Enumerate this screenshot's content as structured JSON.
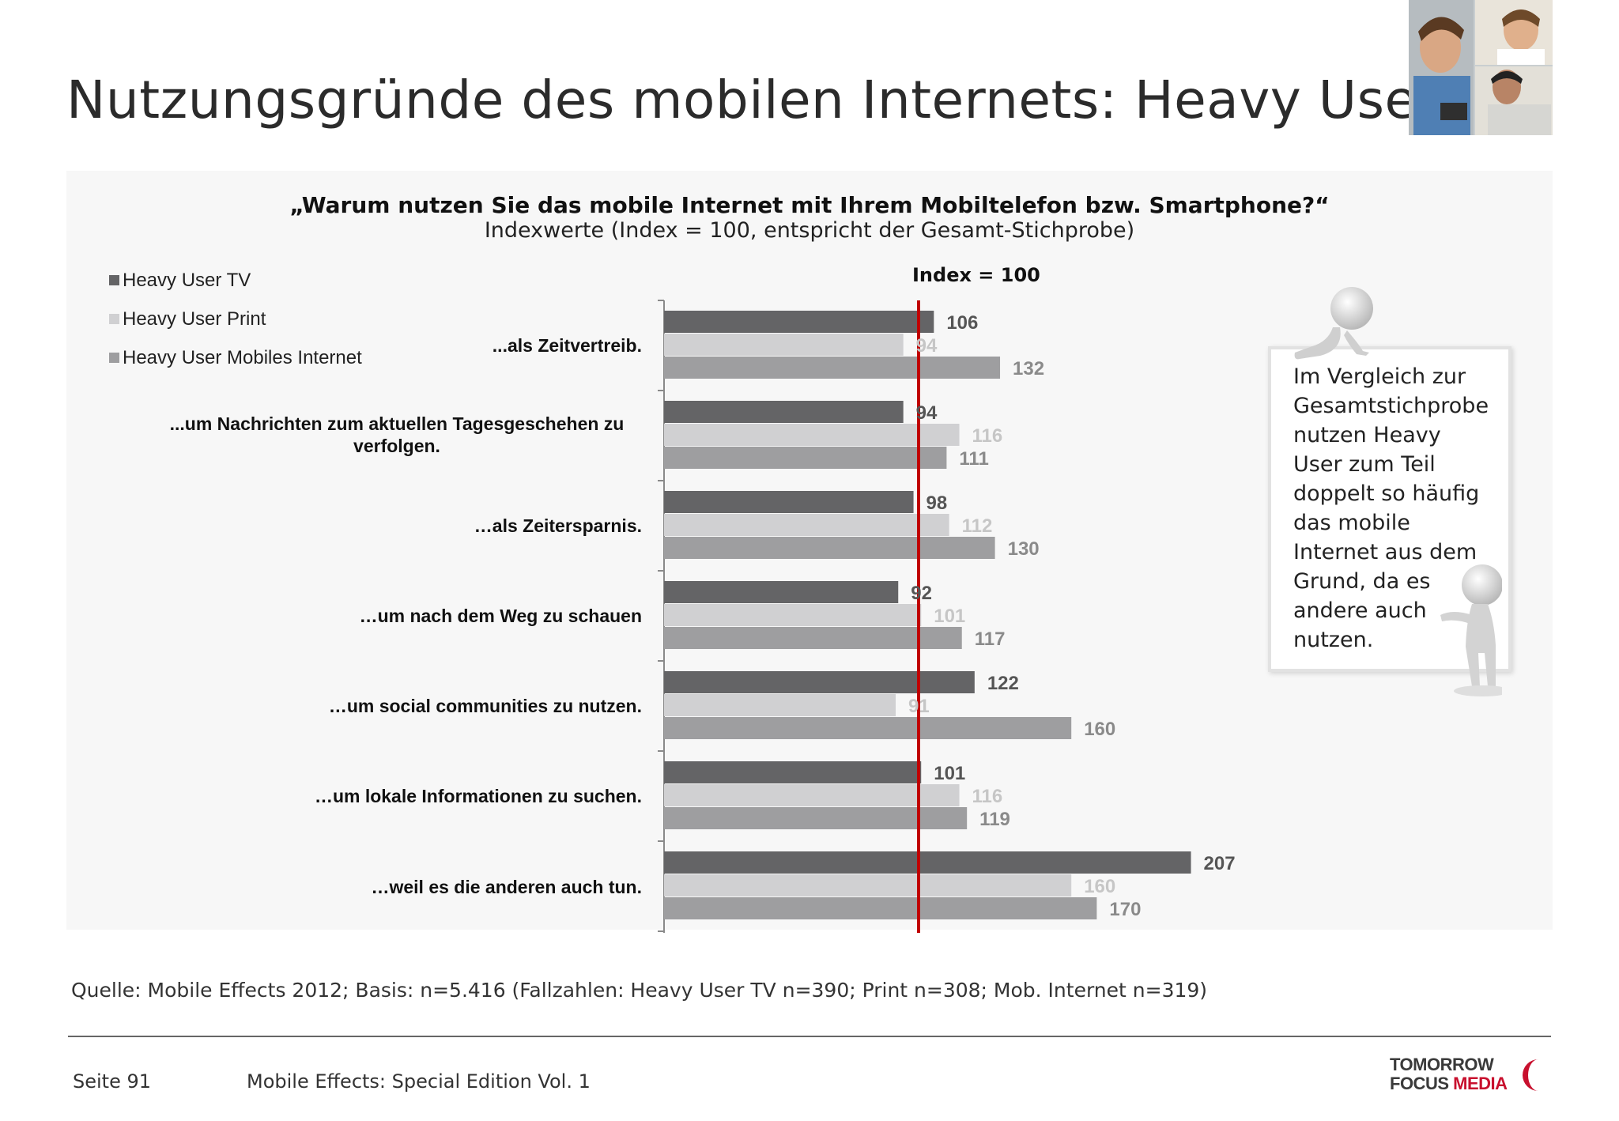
{
  "page": {
    "title": "Nutzungsgründe des mobilen Internets: Heavy User",
    "question": "„Warum nutzen Sie das mobile Internet mit Ihrem Mobiltelefon bzw. Smartphone?“",
    "subtitle": "Indexwerte (Index = 100, entspricht der Gesamt-Stichprobe)",
    "reference_label": "Index = 100",
    "callout_text": "Im Vergleich zur Gesamtstichprobe nutzen Heavy User zum Teil doppelt so häufig das mobile Internet aus dem Grund, da es andere auch nutzen.",
    "source": "Quelle: Mobile Effects 2012; Basis: n=5.416 (Fallzahlen: Heavy User TV n=390; Print n=308; Mob. Internet n=319)",
    "page_number": "Seite 91",
    "footer_text": "Mobile Effects: Special Edition Vol. 1",
    "logo_line1": "TOMORROW",
    "logo_line2a": "FOCUS ",
    "logo_line2b": "MEDIA",
    "logo_colors": {
      "dark": "#3a3a3a",
      "red": "#c8102e"
    }
  },
  "chart_data": {
    "type": "bar",
    "orientation": "horizontal",
    "categories": [
      "...als Zeitvertreib.",
      "...um Nachrichten zum aktuellen Tagesgeschehen zu verfolgen.",
      "…als Zeitersparnis.",
      "…um nach dem Weg zu schauen",
      "…um social communities zu nutzen.",
      "…um lokale Informationen zu suchen.",
      "…weil es die anderen auch tun."
    ],
    "series": [
      {
        "name": "Heavy User TV",
        "color": "#646466",
        "label_color": "#555555",
        "values": [
          106,
          94,
          98,
          92,
          122,
          101,
          207
        ]
      },
      {
        "name": "Heavy User Print",
        "color": "#d0d0d2",
        "label_color": "#c6c6c6",
        "values": [
          94,
          116,
          112,
          101,
          91,
          116,
          160
        ]
      },
      {
        "name": "Heavy User Mobiles Internet",
        "color": "#9e9ea0",
        "label_color": "#8a8a8a",
        "values": [
          132,
          111,
          130,
          117,
          160,
          119,
          170
        ]
      }
    ],
    "reference_line": {
      "value": 100,
      "color": "#c00000"
    },
    "xlim": [
      0,
      210
    ],
    "legend_position": "top-left",
    "grid": false
  }
}
